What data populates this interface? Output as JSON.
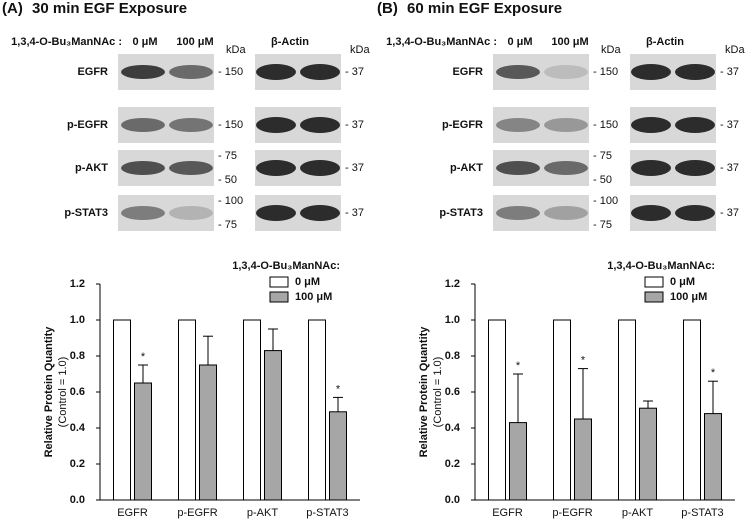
{
  "panels": [
    {
      "letter": "(A)",
      "title": "30 min EGF Exposure",
      "treatment": "1,3,4-O-Bu₃ManNAc :",
      "lanes": [
        "0 μM",
        "100 μM"
      ],
      "kda": "kDa",
      "actin": "β-Actin",
      "rows": [
        {
          "label": "EGFR",
          "markers": [
            "- 150"
          ],
          "actin_marker": "- 37"
        },
        {
          "label": "p-EGFR",
          "markers": [
            "- 150"
          ],
          "actin_marker": "- 37"
        },
        {
          "label": "p-AKT",
          "markers": [
            "- 75",
            "- 50"
          ],
          "actin_marker": "- 37"
        },
        {
          "label": "p-STAT3",
          "markers": [
            "- 100",
            "- 75"
          ],
          "actin_marker": "- 37"
        }
      ]
    },
    {
      "letter": "(B)",
      "title": "60 min EGF Exposure",
      "treatment": "1,3,4-O-Bu₃ManNAc :",
      "lanes": [
        "0 μM",
        "100 μM"
      ],
      "kda": "kDa",
      "actin": "β-Actin",
      "rows": [
        {
          "label": "EGFR",
          "markers": [
            "- 150"
          ],
          "actin_marker": "- 37"
        },
        {
          "label": "p-EGFR",
          "markers": [
            "- 150"
          ],
          "actin_marker": "- 37"
        },
        {
          "label": "p-AKT",
          "markers": [
            "- 75",
            "- 50"
          ],
          "actin_marker": "- 37"
        },
        {
          "label": "p-STAT3",
          "markers": [
            "- 100",
            "- 75"
          ],
          "actin_marker": "- 37"
        }
      ]
    }
  ],
  "chart_data": [
    {
      "type": "bar",
      "ylabel": "Relative Protein Quantity",
      "ylabel_sub": "(Control = 1.0)",
      "legend_title": "1,3,4-O-Bu₃ManNAc:",
      "categories": [
        "EGFR",
        "p-EGFR",
        "p-AKT",
        "p-STAT3"
      ],
      "series": [
        {
          "name": "0 μM",
          "color": "#ffffff",
          "values": [
            1.0,
            1.0,
            1.0,
            1.0
          ]
        },
        {
          "name": "100 μM",
          "color": "#a6a6a6",
          "values": [
            0.65,
            0.75,
            0.83,
            0.49
          ],
          "errors": [
            0.1,
            0.16,
            0.12,
            0.08
          ],
          "markers": [
            "*",
            null,
            null,
            "*"
          ]
        }
      ],
      "ylim": [
        0,
        1.2
      ],
      "yticks": [
        {
          "value": 0,
          "label": "0.0"
        },
        {
          "value": 0.2,
          "label": "0.2"
        },
        {
          "value": 0.4,
          "label": "0.4"
        },
        {
          "value": 0.6,
          "label": "0.6"
        },
        {
          "value": 0.8,
          "label": "0.8"
        },
        {
          "value": 1.0,
          "label": "1.0"
        },
        {
          "value": 1.2,
          "label": "1.2"
        }
      ]
    },
    {
      "type": "bar",
      "ylabel": "Relative Protein Quantity",
      "ylabel_sub": "(Control = 1.0)",
      "legend_title": "1,3,4-O-Bu₃ManNAc:",
      "categories": [
        "EGFR",
        "p-EGFR",
        "p-AKT",
        "p-STAT3"
      ],
      "series": [
        {
          "name": "0 μM",
          "color": "#ffffff",
          "values": [
            1.0,
            1.0,
            1.0,
            1.0
          ]
        },
        {
          "name": "100 μM",
          "color": "#a6a6a6",
          "values": [
            0.43,
            0.45,
            0.51,
            0.48
          ],
          "errors": [
            0.27,
            0.28,
            0.04,
            0.18
          ],
          "markers": [
            "*",
            "*",
            null,
            "*"
          ]
        }
      ],
      "ylim": [
        0,
        1.2
      ],
      "yticks": [
        {
          "value": 0,
          "label": "0.0"
        },
        {
          "value": 0.2,
          "label": "0.2"
        },
        {
          "value": 0.4,
          "label": "0.4"
        },
        {
          "value": 0.6,
          "label": "0.6"
        },
        {
          "value": 0.8,
          "label": "0.8"
        },
        {
          "value": 1.0,
          "label": "1.0"
        },
        {
          "value": 1.2,
          "label": "1.2"
        }
      ]
    }
  ]
}
